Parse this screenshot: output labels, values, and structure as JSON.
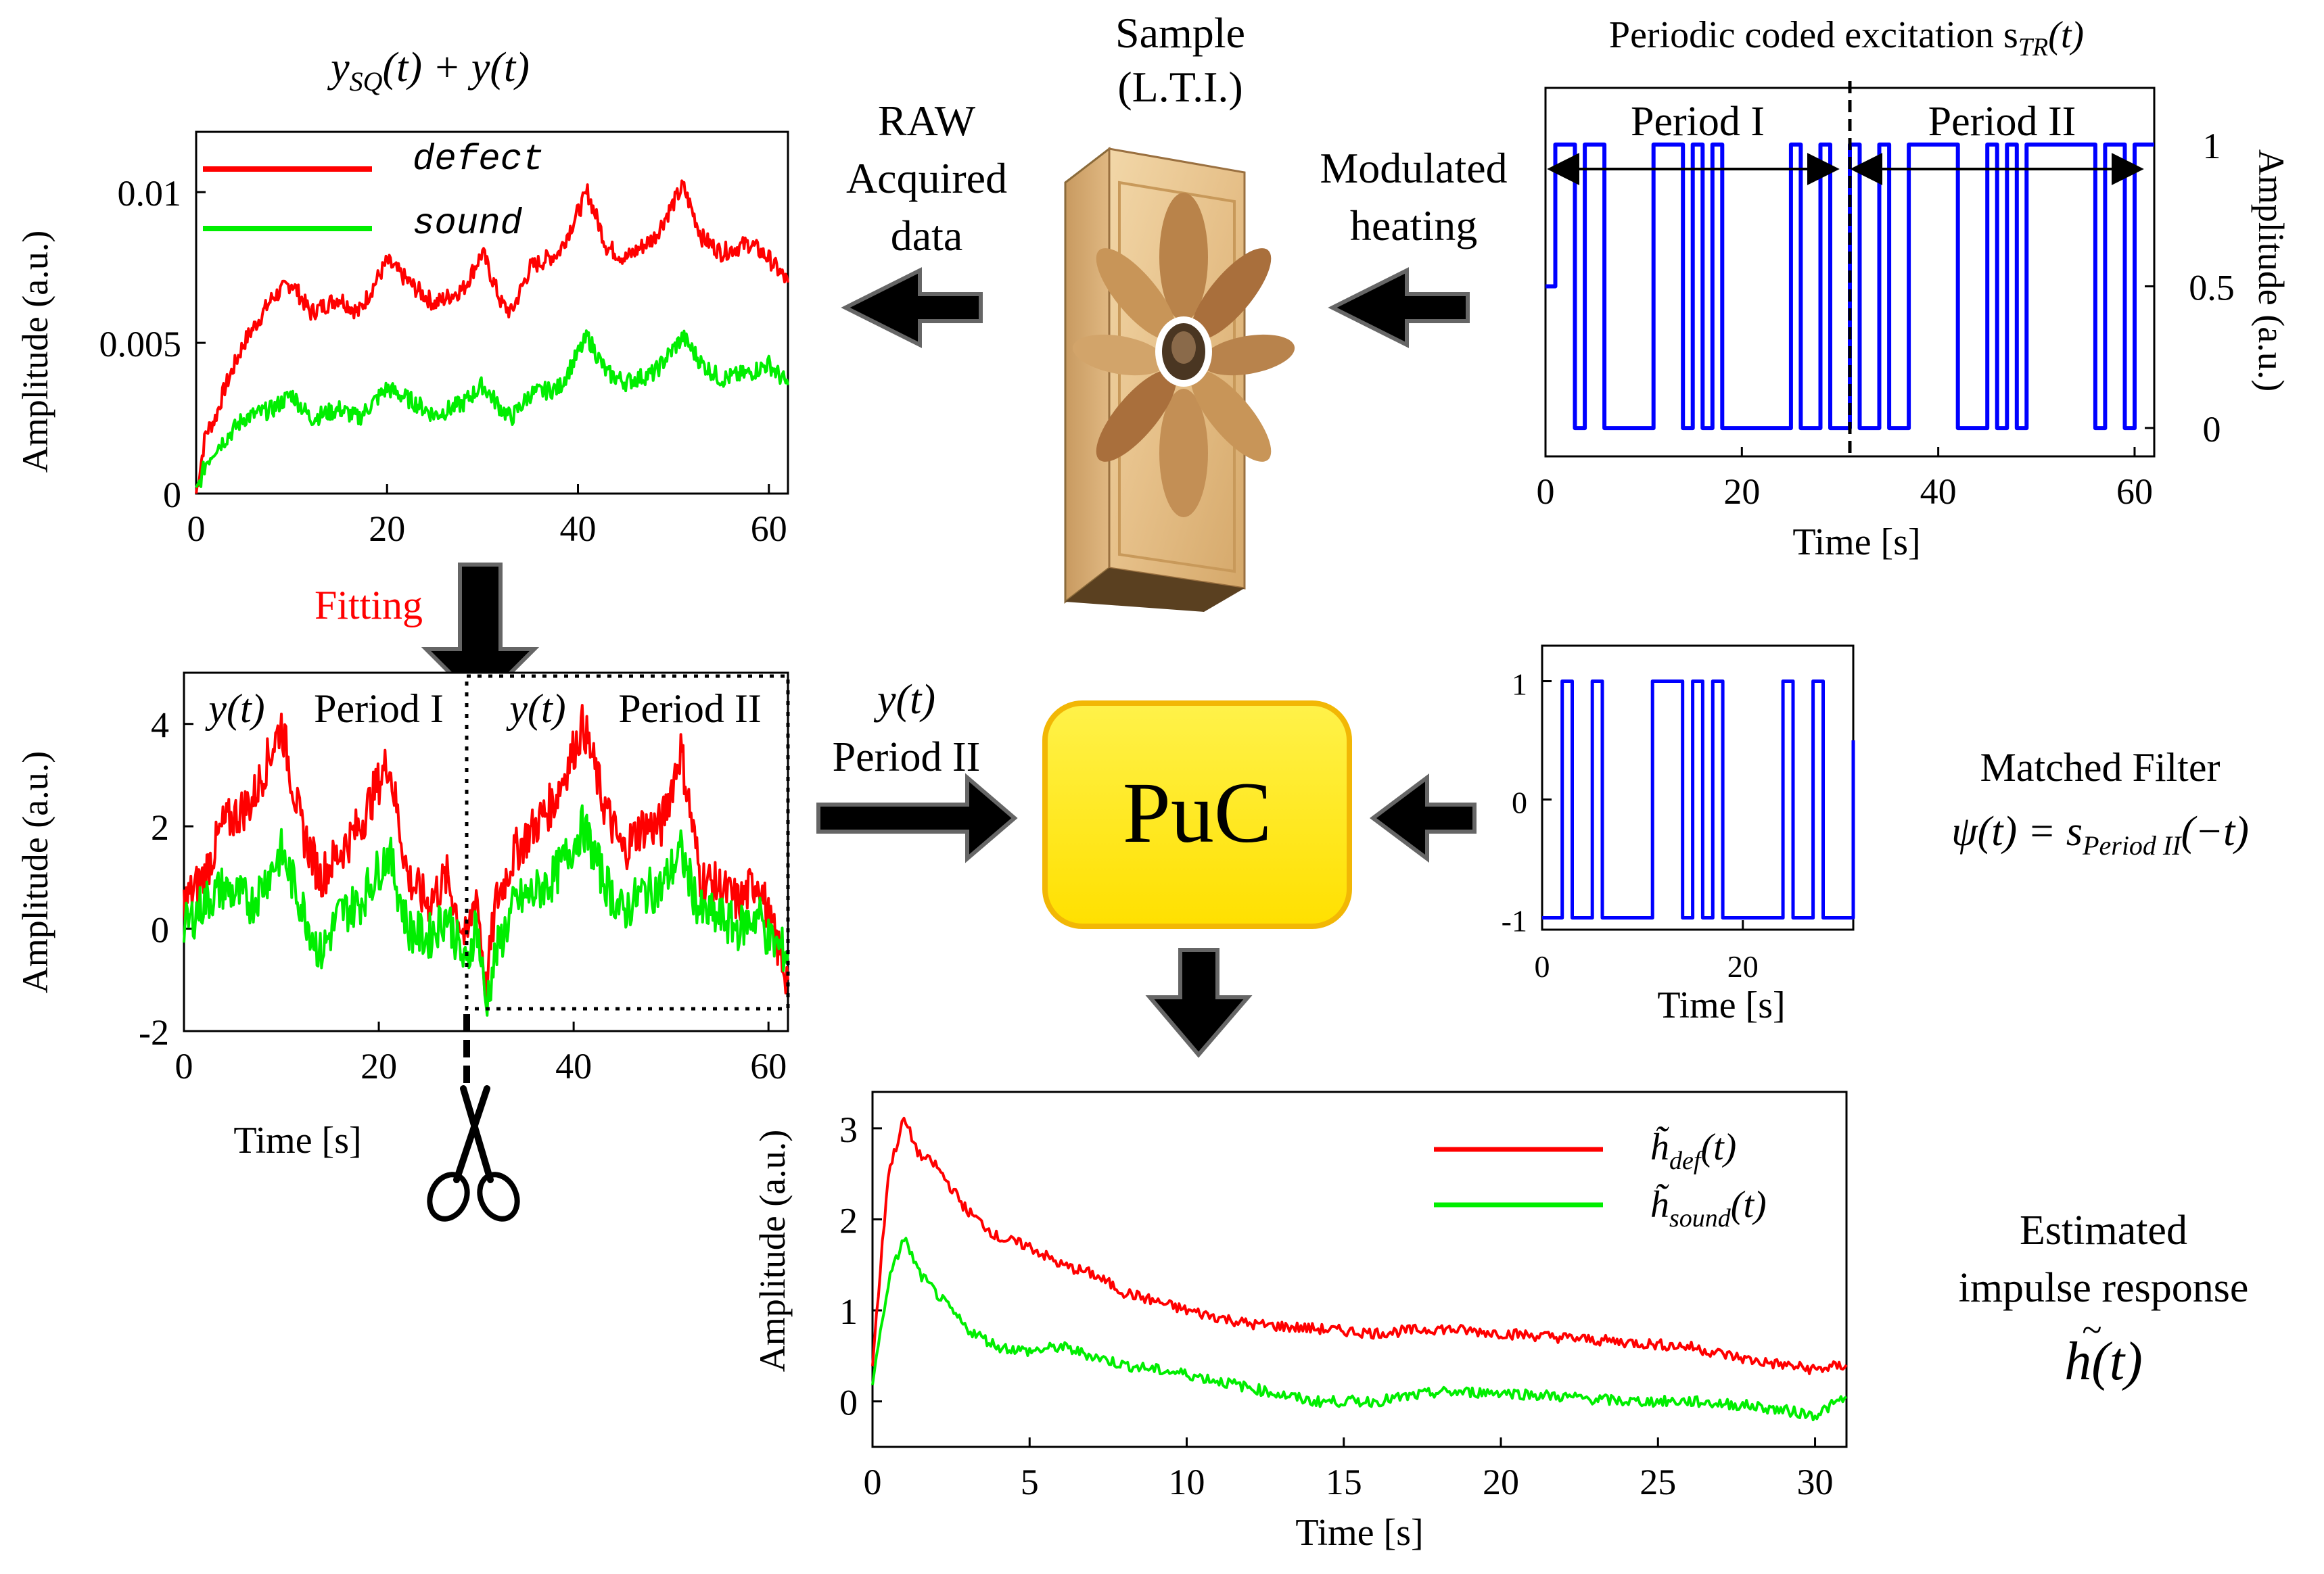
{
  "colors": {
    "defect": "#ff0000",
    "sound": "#00ee00",
    "excitation": "#0000ff",
    "puc_fill": "#ffee00",
    "puc_stroke": "#f2b705",
    "arrow": "#000000",
    "fitting_label": "#ff0000"
  },
  "icons": {
    "sample": "sample-panel-icon",
    "scissors": "scissors-icon",
    "arrow": "block-arrow-icon"
  },
  "labels": {
    "sample_line1": "Sample",
    "sample_line2": "(L.T.I.)",
    "raw_line1": "RAW",
    "raw_line2": "Acquired",
    "raw_line3": "data",
    "mod_line1": "Modulated",
    "mod_line2": "heating",
    "fitting": "Fitting",
    "yt_period2_line1": "y(t)",
    "yt_period2_line2": "Period II",
    "puc": "PuC",
    "mf_title": "Matched Filter",
    "mf_formula": "ψ(t) = s",
    "mf_sub": "Period II",
    "mf_tail": "(−t)",
    "est_line1": "Estimated",
    "est_line2": "impulse response",
    "est_h": "h",
    "est_tail": "(t)"
  },
  "chart_data": [
    {
      "id": "raw",
      "type": "line",
      "title": "y",
      "title_sub": "SQ",
      "title_tail": "(t) + y(t)",
      "xlabel": "",
      "ylabel": "Amplitude (a.u.)",
      "xlim": [
        0,
        62
      ],
      "ylim": [
        0,
        0.012
      ],
      "xticks": [
        0,
        20,
        40,
        60
      ],
      "xtick_labels": [
        "0",
        "20",
        "40",
        "60"
      ],
      "yticks": [
        0,
        0.005,
        0.01
      ],
      "ytick_labels": [
        "0",
        "0.005",
        "0.01"
      ],
      "legend": [
        "defect",
        "sound"
      ],
      "legend_position": "top-left",
      "series": [
        {
          "name": "defect",
          "x": [
            0,
            1,
            2,
            3,
            5,
            8,
            10,
            12,
            15,
            17,
            20,
            23,
            25,
            28,
            30,
            32,
            33,
            35,
            38,
            41,
            43,
            45,
            48,
            51,
            53,
            55,
            58,
            60,
            62
          ],
          "y": [
            0,
            0.002,
            0.0025,
            0.0035,
            0.005,
            0.0065,
            0.007,
            0.006,
            0.0065,
            0.006,
            0.0077,
            0.0068,
            0.0063,
            0.0068,
            0.008,
            0.0063,
            0.006,
            0.0075,
            0.008,
            0.01,
            0.0082,
            0.0078,
            0.0085,
            0.0102,
            0.0085,
            0.008,
            0.0083,
            0.0078,
            0.007
          ]
        },
        {
          "name": "sound",
          "x": [
            0,
            1,
            2,
            3,
            5,
            8,
            10,
            12,
            15,
            17,
            20,
            23,
            25,
            28,
            30,
            32,
            33,
            35,
            38,
            41,
            43,
            45,
            48,
            51,
            53,
            55,
            58,
            60,
            62
          ],
          "y": [
            0,
            0.001,
            0.0015,
            0.0018,
            0.0025,
            0.0028,
            0.0033,
            0.0025,
            0.0028,
            0.0025,
            0.0035,
            0.003,
            0.0026,
            0.003,
            0.0036,
            0.0028,
            0.0025,
            0.0033,
            0.0035,
            0.0052,
            0.004,
            0.0037,
            0.004,
            0.0052,
            0.0043,
            0.0038,
            0.004,
            0.0043,
            0.0036
          ]
        }
      ]
    },
    {
      "id": "excitation",
      "type": "line",
      "title": "Periodic coded excitation s",
      "title_sub": "TR",
      "title_tail": "(t)",
      "xlabel": "Time [s]",
      "ylabel": "Amplitude (a.u.)",
      "ylabel_side": "right",
      "xlim": [
        0,
        62
      ],
      "ylim": [
        -0.1,
        1.2
      ],
      "xticks": [
        0,
        20,
        40,
        60
      ],
      "xtick_labels": [
        "0",
        "20",
        "40",
        "60"
      ],
      "yticks": [
        0,
        0.5,
        1
      ],
      "ytick_labels": [
        "0",
        "0.5",
        "1"
      ],
      "periods": [
        "Period I",
        "Period II"
      ],
      "period_split": 31,
      "series": [
        {
          "name": "s_TR",
          "x": [
            0,
            1,
            1,
            3,
            3,
            4,
            4,
            6,
            6,
            11,
            11,
            14,
            14,
            15,
            15,
            16,
            16,
            17,
            17,
            18,
            18,
            25,
            25,
            26,
            26,
            28,
            28,
            29,
            29,
            31,
            31,
            32,
            32,
            34,
            34,
            35,
            35,
            37,
            37,
            42,
            42,
            45,
            45,
            46,
            46,
            47,
            47,
            48,
            48,
            49,
            49,
            56,
            56,
            57,
            57,
            59,
            59,
            60,
            60,
            62
          ],
          "y": [
            0.5,
            0.5,
            1,
            1,
            0,
            0,
            1,
            1,
            0,
            0,
            1,
            1,
            0,
            0,
            1,
            1,
            0,
            0,
            1,
            1,
            0,
            0,
            1,
            1,
            0,
            0,
            1,
            1,
            0,
            0,
            1,
            1,
            0,
            0,
            1,
            1,
            0,
            0,
            1,
            1,
            0,
            0,
            1,
            1,
            0,
            0,
            1,
            1,
            0,
            0,
            1,
            1,
            0,
            0,
            1,
            1,
            0,
            0,
            1,
            1
          ]
        }
      ]
    },
    {
      "id": "fitted",
      "type": "line",
      "title": "",
      "xlabel": "Time [s]",
      "ylabel": "Amplitude (a.u.)",
      "xlim": [
        0,
        62
      ],
      "ylim": [
        -2,
        5
      ],
      "xticks": [
        0,
        20,
        40,
        60
      ],
      "xtick_labels": [
        "0",
        "20",
        "40",
        "60"
      ],
      "yticks": [
        -2,
        0,
        2,
        4
      ],
      "ytick_labels": [
        "-2",
        "0",
        "2",
        "4"
      ],
      "annotations": [
        "y(t)",
        "Period I",
        "y(t)",
        "Period II"
      ],
      "cut_at": 29,
      "series": [
        {
          "name": "defect",
          "x": [
            0,
            2,
            4,
            7,
            10,
            12,
            14,
            16,
            18,
            21,
            23,
            25,
            27,
            29,
            30,
            31,
            32,
            34,
            36,
            38,
            41,
            43,
            45,
            47,
            49,
            51,
            53,
            55,
            57,
            59,
            60,
            62
          ],
          "y": [
            0.5,
            1.0,
            2.0,
            2.5,
            4.0,
            2.0,
            1.0,
            1.5,
            2.0,
            3.3,
            1.0,
            0.5,
            1.0,
            -0.3,
            0.8,
            -1.2,
            0.5,
            1.5,
            2.0,
            2.5,
            4.0,
            2.5,
            1.5,
            2.0,
            2.0,
            3.5,
            1.0,
            0.8,
            0.5,
            1.0,
            0.2,
            -1.0
          ]
        },
        {
          "name": "sound",
          "x": [
            0,
            2,
            4,
            7,
            10,
            12,
            14,
            16,
            18,
            21,
            23,
            25,
            27,
            29,
            30,
            31,
            32,
            34,
            36,
            38,
            41,
            43,
            45,
            47,
            49,
            51,
            53,
            55,
            57,
            59,
            60,
            62
          ],
          "y": [
            0.0,
            0.5,
            0.8,
            0.5,
            1.5,
            0.5,
            -0.5,
            0.3,
            0.5,
            1.5,
            0.0,
            -0.2,
            0.3,
            -0.8,
            0.2,
            -1.5,
            -0.5,
            0.5,
            0.7,
            1.0,
            2.0,
            1.0,
            0.3,
            0.7,
            0.8,
            1.5,
            0.3,
            0.2,
            0.0,
            0.3,
            -0.2,
            -0.5
          ]
        }
      ]
    },
    {
      "id": "matched",
      "type": "line",
      "title": "",
      "xlabel": "Time [s]",
      "ylabel": "",
      "xlim": [
        0,
        31
      ],
      "ylim": [
        -1.1,
        1.3
      ],
      "xticks": [
        0,
        20
      ],
      "xtick_labels": [
        "0",
        "20"
      ],
      "yticks": [
        -1,
        0,
        1
      ],
      "ytick_labels": [
        "-1",
        "0",
        "1"
      ],
      "series": [
        {
          "name": "psi",
          "x": [
            0,
            2,
            2,
            3,
            3,
            5,
            5,
            6,
            6,
            11,
            11,
            14,
            14,
            15,
            15,
            16,
            16,
            17,
            17,
            18,
            18,
            24,
            24,
            25,
            25,
            27,
            27,
            28,
            28,
            31,
            31
          ],
          "y": [
            -1,
            -1,
            1,
            1,
            -1,
            -1,
            1,
            1,
            -1,
            -1,
            1,
            1,
            -1,
            -1,
            1,
            1,
            -1,
            -1,
            1,
            1,
            -1,
            -1,
            1,
            1,
            -1,
            -1,
            1,
            1,
            -1,
            -1,
            0.5
          ]
        }
      ]
    },
    {
      "id": "impulse",
      "type": "line",
      "title": "",
      "xlabel": "Time [s]",
      "ylabel": "Amplitude (a.u.)",
      "xlim": [
        0,
        31
      ],
      "ylim": [
        -0.5,
        3.4
      ],
      "xticks": [
        0,
        5,
        10,
        15,
        20,
        25,
        30
      ],
      "xtick_labels": [
        "0",
        "5",
        "10",
        "15",
        "20",
        "25",
        "30"
      ],
      "yticks": [
        0,
        1,
        2,
        3
      ],
      "ytick_labels": [
        "0",
        "1",
        "2",
        "3"
      ],
      "legend": [
        "h_def(t)",
        "h_sound(t)"
      ],
      "legend_position": "top-right",
      "legend_subs": [
        "def",
        "sound"
      ],
      "series": [
        {
          "name": "h_def",
          "x": [
            0,
            0.5,
            1,
            1.5,
            2,
            3,
            4,
            5,
            6,
            7,
            8,
            10,
            12,
            14,
            16,
            18,
            20,
            22,
            24,
            26,
            28,
            30,
            31
          ],
          "y": [
            0.4,
            2.5,
            3.1,
            2.7,
            2.6,
            2.1,
            1.8,
            1.7,
            1.5,
            1.4,
            1.2,
            1.0,
            0.85,
            0.8,
            0.75,
            0.8,
            0.75,
            0.7,
            0.65,
            0.6,
            0.45,
            0.35,
            0.4
          ]
        },
        {
          "name": "h_sound",
          "x": [
            0,
            0.5,
            1,
            1.5,
            2,
            3,
            4,
            5,
            6,
            7,
            8,
            10,
            12,
            14,
            16,
            18,
            20,
            22,
            24,
            26,
            28,
            30,
            31
          ],
          "y": [
            0.2,
            1.3,
            1.8,
            1.4,
            1.2,
            0.8,
            0.6,
            0.55,
            0.6,
            0.5,
            0.4,
            0.3,
            0.15,
            0.0,
            0.0,
            0.1,
            0.1,
            0.05,
            0.0,
            0.0,
            -0.05,
            -0.15,
            0.05
          ]
        }
      ]
    }
  ]
}
